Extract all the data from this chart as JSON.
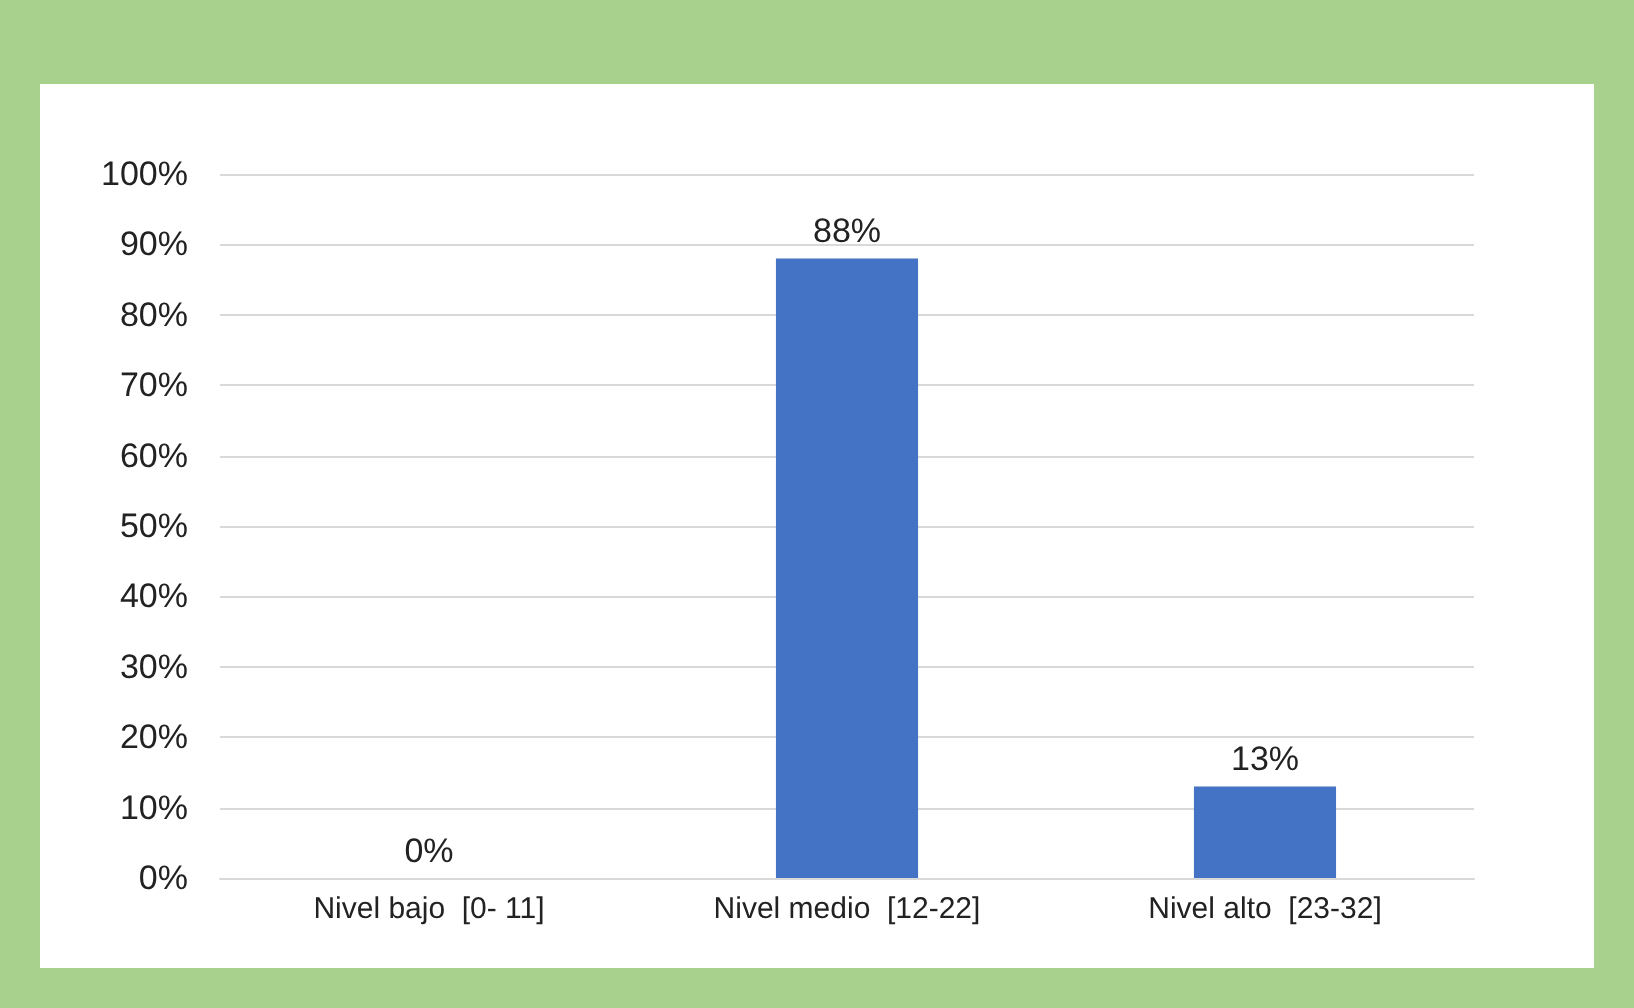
{
  "chart_data": {
    "type": "bar",
    "categories": [
      "Nivel bajo  [0- 11]",
      "Nivel medio  [12-22]",
      "Nivel alto  [23-32]"
    ],
    "values": [
      0,
      88,
      13
    ],
    "value_labels": [
      "0%",
      "88%",
      "13%"
    ],
    "color": "#4472c4",
    "ylim": [
      0,
      100
    ],
    "yticks": [
      {
        "value": 0,
        "label": "0%"
      },
      {
        "value": 10,
        "label": "10%"
      },
      {
        "value": 20,
        "label": "20%"
      },
      {
        "value": 30,
        "label": "30%"
      },
      {
        "value": 40,
        "label": "40%"
      },
      {
        "value": 50,
        "label": "50%"
      },
      {
        "value": 60,
        "label": "60%"
      },
      {
        "value": 70,
        "label": "70%"
      },
      {
        "value": 80,
        "label": "80%"
      },
      {
        "value": 90,
        "label": "90%"
      },
      {
        "value": 100,
        "label": "100%"
      }
    ],
    "grid": true
  }
}
